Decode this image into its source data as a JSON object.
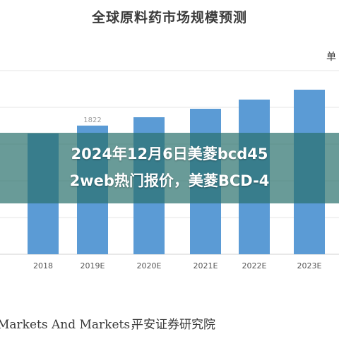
{
  "chart_data": {
    "type": "bar",
    "title": "全球原料药市场规模预测",
    "unit_label": "单",
    "categories": [
      "2018",
      "2019E",
      "2020E",
      "2021E",
      "2022E",
      "2023E"
    ],
    "values": [
      1710,
      1822,
      1940,
      2060,
      2190,
      2330
    ],
    "data_labels": [
      "",
      "1822",
      "",
      "",
      "",
      ""
    ],
    "bar_color": "#5b9bd5",
    "grid": true,
    "legend": "none"
  },
  "banner": {
    "line1": "2024年12月6日美菱bcd45",
    "line2": "2web热门报价，美菱BCD-4"
  },
  "footer": {
    "source_left": "Markets And Markets，",
    "source_right": "平安证券研究院"
  }
}
